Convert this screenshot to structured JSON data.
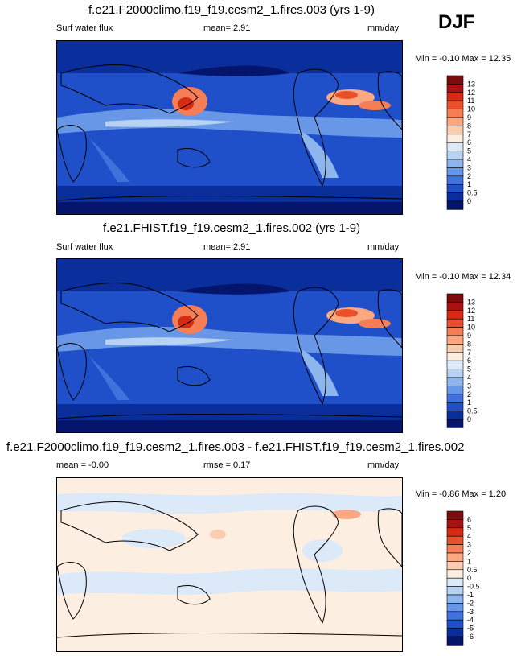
{
  "season": "DJF",
  "panels": [
    {
      "title": "f.e21.F2000climo.f19_f19.cesm2_1.fires.003 (yrs 1-9)",
      "left_label": "Surf water flux",
      "center_label": "mean=   2.91",
      "units": "mm/day",
      "minmax": "Min =  -0.10 Max =  12.35",
      "colorbar_labels": [
        "13",
        "12",
        "11",
        "10",
        "9",
        "8",
        "7",
        "6",
        "5",
        "4",
        "3",
        "2",
        "1",
        "0.5",
        "0"
      ]
    },
    {
      "title": "f.e21.FHIST.f19_f19.cesm2_1.fires.002 (yrs 1-9)",
      "left_label": "Surf water flux",
      "center_label": "mean=   2.91",
      "units": "mm/day",
      "minmax": "Min =  -0.10 Max =  12.34",
      "colorbar_labels": [
        "13",
        "12",
        "11",
        "10",
        "9",
        "8",
        "7",
        "6",
        "5",
        "4",
        "3",
        "2",
        "1",
        "0.5",
        "0"
      ]
    },
    {
      "title": "f.e21.F2000climo.f19_f19.cesm2_1.fires.003 - f.e21.FHIST.f19_f19.cesm2_1.fires.002",
      "left_label": "mean =  -0.00",
      "center_label": "rmse =   0.17",
      "units": "mm/day",
      "minmax": "Min =  -0.86 Max =    1.20",
      "colorbar_labels": [
        "6",
        "5",
        "4",
        "3",
        "2",
        "1",
        "0.5",
        "0",
        "-0.5",
        "-1",
        "-2",
        "-3",
        "-4",
        "-5",
        "-6"
      ]
    }
  ],
  "colors": {
    "abs_scale": [
      "#7b0d0d",
      "#a91212",
      "#d42b12",
      "#e8502a",
      "#f57e56",
      "#f9a882",
      "#fbcdb0",
      "#fdeee2",
      "#dce9f8",
      "#b8d2f4",
      "#8db5ee",
      "#6797e6",
      "#3f72dc",
      "#1f4fc9",
      "#0a2e9c",
      "#04156b"
    ],
    "diff_scale": [
      "#7b0d0d",
      "#a91212",
      "#d42b12",
      "#e8502a",
      "#f57e56",
      "#f9a882",
      "#fbcdb0",
      "#fdeee2",
      "#dce9f8",
      "#b8d2f4",
      "#8db5ee",
      "#6797e6",
      "#3f72dc",
      "#1f4fc9",
      "#0a2e9c",
      "#04156b"
    ]
  }
}
